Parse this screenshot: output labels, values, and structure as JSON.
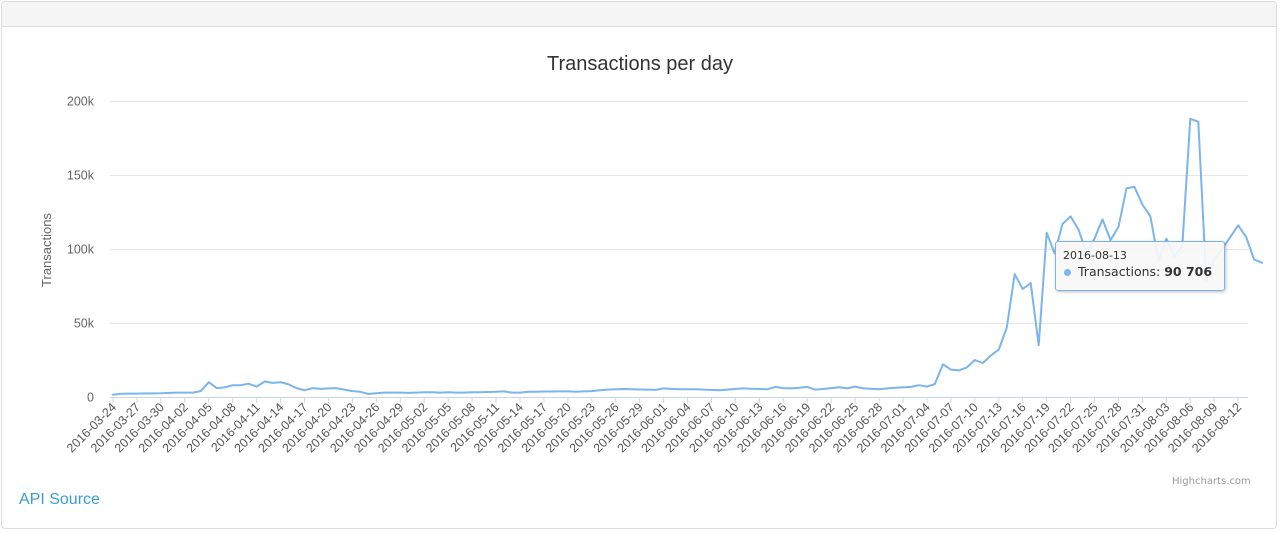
{
  "chart_data": {
    "type": "line",
    "title": "Transactions per day",
    "ylabel": "Transactions",
    "xlabel": "",
    "ylim": [
      0,
      200000
    ],
    "y_ticks": [
      "0",
      "50k",
      "100k",
      "150k",
      "200k"
    ],
    "y_tick_values": [
      0,
      50000,
      100000,
      150000,
      200000
    ],
    "x_start": "2016-03-24",
    "x_tick_labels": [
      "2016-03-24",
      "2016-03-27",
      "2016-03-30",
      "2016-04-02",
      "2016-04-05",
      "2016-04-08",
      "2016-04-11",
      "2016-04-14",
      "2016-04-17",
      "2016-04-20",
      "2016-04-23",
      "2016-04-26",
      "2016-04-29",
      "2016-05-02",
      "2016-05-05",
      "2016-05-08",
      "2016-05-11",
      "2016-05-14",
      "2016-05-17",
      "2016-05-20",
      "2016-05-23",
      "2016-05-26",
      "2016-05-29",
      "2016-06-01",
      "2016-06-04",
      "2016-06-07",
      "2016-06-10",
      "2016-06-13",
      "2016-06-16",
      "2016-06-19",
      "2016-06-22",
      "2016-06-25",
      "2016-06-28",
      "2016-07-01",
      "2016-07-04",
      "2016-07-07",
      "2016-07-10",
      "2016-07-13",
      "2016-07-16",
      "2016-07-19",
      "2016-07-22",
      "2016-07-25",
      "2016-07-28",
      "2016-07-31",
      "2016-08-03",
      "2016-08-06",
      "2016-08-09",
      "2016-08-12"
    ],
    "grid": true,
    "legend": "none",
    "series": [
      {
        "values": [
          1500,
          2200,
          2300,
          2300,
          2400,
          2400,
          2500,
          2800,
          3000,
          3000,
          3000,
          4000,
          10000,
          6000,
          6500,
          8000,
          8000,
          9000,
          7000,
          10500,
          9500,
          10000,
          8500,
          6000,
          4500,
          6000,
          5500,
          5800,
          6000,
          5000,
          4000,
          3500,
          2000,
          2500,
          3000,
          3000,
          3000,
          2800,
          3000,
          3200,
          3200,
          3000,
          3200,
          3000,
          3000,
          3200,
          3200,
          3400,
          3500,
          3800,
          3000,
          3000,
          3500,
          3500,
          3700,
          3700,
          3800,
          3800,
          3600,
          3800,
          4000,
          4500,
          5000,
          5200,
          5400,
          5200,
          5100,
          5000,
          4800,
          5800,
          5500,
          5200,
          5300,
          5200,
          5000,
          4800,
          4600,
          5000,
          5500,
          5800,
          5600,
          5400,
          5200,
          6800,
          6000,
          5800,
          6200,
          6800,
          5000,
          5400,
          6000,
          6600,
          5800,
          7000,
          5800,
          5600,
          5200,
          5800,
          6200,
          6500,
          6800,
          8000,
          7000,
          8800,
          22000,
          18500,
          18000,
          20000,
          25000,
          23000,
          28000,
          32000,
          47000,
          83000,
          73000,
          77000,
          35000,
          111000,
          97000,
          117000,
          122000,
          113000,
          97000,
          107000,
          120000,
          106000,
          115000,
          141000,
          142000,
          130000,
          122000,
          92000,
          107000,
          95000,
          102000,
          188000,
          186000,
          78000,
          93000,
          100000,
          108000,
          116000,
          108000,
          93000,
          90706
        ]
      }
    ],
    "tooltip": {
      "date": "2016-08-13",
      "series_label": "Transactions: ",
      "value_text": "90 706"
    },
    "colors": {
      "line": "#7cb5ec",
      "grid": "#e6e6e6",
      "axis": "#ccd6eb"
    }
  },
  "footer": {
    "api_link": "API Source",
    "credits": "Highcharts.com"
  }
}
